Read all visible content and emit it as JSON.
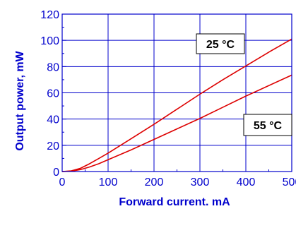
{
  "chart_data": {
    "type": "line",
    "xlabel": "Forward current. mA",
    "ylabel": "Output power, mW",
    "xlim": [
      0,
      500
    ],
    "ylim": [
      0,
      120
    ],
    "xticks": [
      0,
      100,
      200,
      300,
      400,
      500
    ],
    "yticks": [
      0,
      20,
      40,
      60,
      80,
      100,
      120
    ],
    "grid": true,
    "series": [
      {
        "name": "25 °C",
        "color": "#dd0000",
        "x": [
          0,
          20,
          40,
          60,
          80,
          100,
          150,
          200,
          250,
          300,
          350,
          400,
          450,
          500
        ],
        "y": [
          0,
          0.5,
          2.5,
          6,
          10,
          14,
          25,
          36,
          47.5,
          59,
          70,
          80.5,
          91,
          101
        ]
      },
      {
        "name": "55 °C",
        "color": "#dd0000",
        "x": [
          0,
          20,
          40,
          60,
          80,
          100,
          150,
          200,
          250,
          300,
          350,
          400,
          450,
          500
        ],
        "y": [
          0,
          0.3,
          1.5,
          3.5,
          6,
          9,
          16.5,
          24.5,
          32.5,
          40.5,
          49,
          57.5,
          65.5,
          73.5
        ]
      }
    ],
    "labels": [
      {
        "text": "25 °C",
        "series": 0
      },
      {
        "text": "55 °C",
        "series": 1
      }
    ]
  }
}
